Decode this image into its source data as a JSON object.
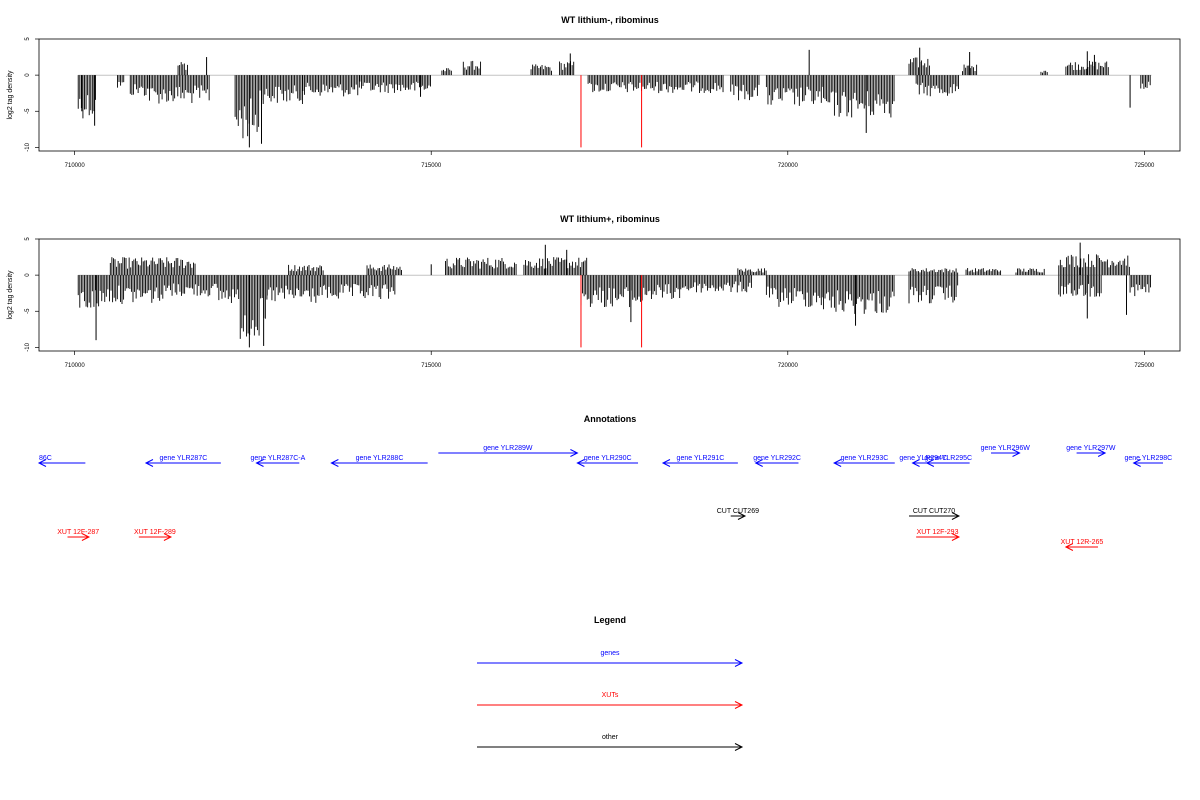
{
  "colors": {
    "gene": "#0000ff",
    "xut": "#ff0000",
    "other": "#000000",
    "highlight": "#ff0000",
    "bars": "#000000"
  },
  "chart_data": [
    {
      "type": "bar",
      "title": "WT lithium-, ribominus",
      "xlabel": "",
      "ylabel": "log2 tag density",
      "xlim": [
        709500,
        725500
      ],
      "ylim": [
        -10.5,
        5
      ],
      "x_ticks": [
        710000,
        715000,
        720000,
        725000
      ],
      "y_ticks": [
        5,
        0,
        -5,
        -10
      ],
      "x_tick_labels": [
        "710000",
        "715000",
        "720000",
        "725000"
      ],
      "y_tick_labels": [
        "5",
        "0",
        "-5",
        "-10"
      ],
      "highlight_x": [
        717100,
        717950
      ],
      "highlight_value": -10,
      "segments": [
        {
          "start": 710050,
          "end": 710300,
          "value": -6.0
        },
        {
          "start": 710600,
          "end": 710700,
          "value": -2.0
        },
        {
          "start": 710780,
          "end": 711050,
          "value": -3.0
        },
        {
          "start": 711050,
          "end": 711900,
          "value": -4.0
        },
        {
          "start": 711450,
          "end": 711600,
          "value": 2.0
        },
        {
          "start": 712250,
          "end": 712600,
          "value": -9.0
        },
        {
          "start": 712600,
          "end": 713200,
          "value": -4.0
        },
        {
          "start": 713200,
          "end": 714000,
          "value": -3.0
        },
        {
          "start": 714000,
          "end": 715000,
          "value": -2.5
        },
        {
          "start": 715150,
          "end": 715300,
          "value": 1.0
        },
        {
          "start": 715450,
          "end": 715700,
          "value": 2.0
        },
        {
          "start": 716400,
          "end": 716700,
          "value": 1.5
        },
        {
          "start": 716800,
          "end": 717000,
          "value": 2.0
        },
        {
          "start": 717200,
          "end": 719100,
          "value": -2.5
        },
        {
          "start": 719200,
          "end": 719600,
          "value": -3.5
        },
        {
          "start": 719700,
          "end": 720500,
          "value": -4.5
        },
        {
          "start": 720500,
          "end": 721500,
          "value": -6.0
        },
        {
          "start": 721700,
          "end": 722000,
          "value": 2.5
        },
        {
          "start": 721800,
          "end": 722400,
          "value": -3.0
        },
        {
          "start": 722450,
          "end": 722650,
          "value": 1.5
        },
        {
          "start": 723550,
          "end": 723650,
          "value": 1.0
        },
        {
          "start": 723900,
          "end": 724500,
          "value": 2.0
        },
        {
          "start": 724950,
          "end": 725100,
          "value": -2.5
        }
      ],
      "spikes": [
        {
          "x": 710100,
          "value": -5.0
        },
        {
          "x": 710280,
          "value": -7.0
        },
        {
          "x": 711850,
          "value": 2.5
        },
        {
          "x": 712450,
          "value": -10.0
        },
        {
          "x": 712620,
          "value": -9.5
        },
        {
          "x": 714850,
          "value": -3.0
        },
        {
          "x": 716950,
          "value": 3.0
        },
        {
          "x": 720300,
          "value": 3.5
        },
        {
          "x": 721100,
          "value": -8.0
        },
        {
          "x": 721850,
          "value": 3.8
        },
        {
          "x": 722550,
          "value": 3.2
        },
        {
          "x": 724200,
          "value": 3.3
        },
        {
          "x": 724300,
          "value": 2.8
        },
        {
          "x": 724800,
          "value": -4.5
        }
      ]
    },
    {
      "type": "bar",
      "title": "WT lithium+, ribominus",
      "xlabel": "",
      "ylabel": "log2 tag density",
      "xlim": [
        709500,
        725500
      ],
      "ylim": [
        -10.5,
        5
      ],
      "x_ticks": [
        710000,
        715000,
        720000,
        725000
      ],
      "y_ticks": [
        5,
        0,
        -5,
        -10
      ],
      "x_tick_labels": [
        "710000",
        "715000",
        "720000",
        "725000"
      ],
      "y_tick_labels": [
        "5",
        "0",
        "-5",
        "-10"
      ],
      "highlight_x": [
        717100,
        717950
      ],
      "highlight_value": -10,
      "segments": [
        {
          "start": 710050,
          "end": 710400,
          "value": -5.0
        },
        {
          "start": 710400,
          "end": 711300,
          "value": -4.0
        },
        {
          "start": 710500,
          "end": 711700,
          "value": 2.5
        },
        {
          "start": 711300,
          "end": 712000,
          "value": -3.0
        },
        {
          "start": 712000,
          "end": 712300,
          "value": -4.0
        },
        {
          "start": 712300,
          "end": 712700,
          "value": -9.0
        },
        {
          "start": 712700,
          "end": 713500,
          "value": -4.0
        },
        {
          "start": 713000,
          "end": 713500,
          "value": 1.5
        },
        {
          "start": 713500,
          "end": 714500,
          "value": -3.5
        },
        {
          "start": 714100,
          "end": 714600,
          "value": 1.5
        },
        {
          "start": 715200,
          "end": 716200,
          "value": 2.5
        },
        {
          "start": 716300,
          "end": 717200,
          "value": 2.5
        },
        {
          "start": 717100,
          "end": 718000,
          "value": -4.5
        },
        {
          "start": 718000,
          "end": 718500,
          "value": -3.5
        },
        {
          "start": 718500,
          "end": 719500,
          "value": -2.5
        },
        {
          "start": 719300,
          "end": 719700,
          "value": 1.0
        },
        {
          "start": 719700,
          "end": 720500,
          "value": -4.5
        },
        {
          "start": 720500,
          "end": 721500,
          "value": -5.5
        },
        {
          "start": 721700,
          "end": 722400,
          "value": -4.0
        },
        {
          "start": 721700,
          "end": 722400,
          "value": 1.0
        },
        {
          "start": 722500,
          "end": 723000,
          "value": 1.0
        },
        {
          "start": 723200,
          "end": 723600,
          "value": 1.0
        },
        {
          "start": 723800,
          "end": 724800,
          "value": 3.0
        },
        {
          "start": 723800,
          "end": 724400,
          "value": -3.0
        },
        {
          "start": 724800,
          "end": 725100,
          "value": -3.0
        }
      ],
      "spikes": [
        {
          "x": 710300,
          "value": -9.0
        },
        {
          "x": 712450,
          "value": -10.0
        },
        {
          "x": 712650,
          "value": -9.8
        },
        {
          "x": 715000,
          "value": 1.5
        },
        {
          "x": 716600,
          "value": 4.2
        },
        {
          "x": 716900,
          "value": 3.5
        },
        {
          "x": 717800,
          "value": -6.5
        },
        {
          "x": 720950,
          "value": -7.0
        },
        {
          "x": 724100,
          "value": 4.5
        },
        {
          "x": 724200,
          "value": -6.0
        },
        {
          "x": 724750,
          "value": -5.5
        }
      ]
    }
  ],
  "annotations": {
    "title": "Annotations",
    "xlim": [
      709500,
      725500
    ],
    "features": [
      {
        "label": "gene YLR286C",
        "display": "86C",
        "type": "gene",
        "start": 709500,
        "end": 710150,
        "strand": "-",
        "row": 0,
        "clip_left": true
      },
      {
        "label": "gene YLR287C",
        "type": "gene",
        "start": 711000,
        "end": 712050,
        "strand": "-",
        "row": 0
      },
      {
        "label": "gene YLR287C-A",
        "type": "gene",
        "start": 712550,
        "end": 713150,
        "strand": "-",
        "row": 0
      },
      {
        "label": "gene YLR288C",
        "type": "gene",
        "start": 713600,
        "end": 714950,
        "strand": "-",
        "row": 0
      },
      {
        "label": "gene YLR289W",
        "type": "gene",
        "start": 715100,
        "end": 717050,
        "strand": "+",
        "row": -1
      },
      {
        "label": "gene YLR290C",
        "type": "gene",
        "start": 717050,
        "end": 717900,
        "strand": "-",
        "row": 0
      },
      {
        "label": "gene YLR291C",
        "type": "gene",
        "start": 718250,
        "end": 719300,
        "strand": "-",
        "row": 0
      },
      {
        "label": "gene YLR292C",
        "type": "gene",
        "start": 719550,
        "end": 720150,
        "strand": "-",
        "row": 0
      },
      {
        "label": "gene YLR293C",
        "type": "gene",
        "start": 720650,
        "end": 721500,
        "strand": "-",
        "row": 0
      },
      {
        "label": "gene YLR294C",
        "type": "gene",
        "start": 721750,
        "end": 722050,
        "strand": "-",
        "row": 0
      },
      {
        "label": "gene YLR295C",
        "type": "gene",
        "start": 721950,
        "end": 722550,
        "strand": "-",
        "row": 0
      },
      {
        "label": "gene YLR296W",
        "type": "gene",
        "start": 722850,
        "end": 723250,
        "strand": "+",
        "row": -1
      },
      {
        "label": "gene YLR297W",
        "type": "gene",
        "start": 724050,
        "end": 724450,
        "strand": "+",
        "row": -1
      },
      {
        "label": "gene YLR298C",
        "type": "gene",
        "start": 724850,
        "end": 725500,
        "strand": "-",
        "row": 0
      },
      {
        "label": "CUT CUT269",
        "type": "other",
        "start": 719200,
        "end": 719400,
        "strand": "+",
        "row": 1
      },
      {
        "label": "CUT CUT270",
        "type": "other",
        "start": 721700,
        "end": 722400,
        "strand": "+",
        "row": 1
      },
      {
        "label": "XUT 12F-287",
        "type": "xut",
        "start": 709900,
        "end": 710200,
        "strand": "+",
        "row": 2
      },
      {
        "label": "XUT 12F-289",
        "type": "xut",
        "start": 710900,
        "end": 711350,
        "strand": "+",
        "row": 2
      },
      {
        "label": "XUT 12F-293",
        "type": "xut",
        "start": 721800,
        "end": 722400,
        "strand": "+",
        "row": 2
      },
      {
        "label": "XUT 12R-265",
        "type": "xut",
        "start": 723900,
        "end": 724350,
        "strand": "-",
        "row": 3
      }
    ]
  },
  "legend": {
    "title": "Legend",
    "items": [
      {
        "label": "genes",
        "type": "gene"
      },
      {
        "label": "XUTs",
        "type": "xut"
      },
      {
        "label": "other",
        "type": "other"
      }
    ]
  }
}
